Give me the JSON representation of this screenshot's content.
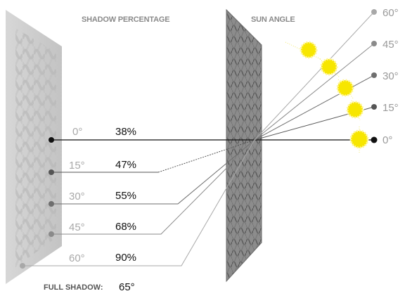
{
  "headers": {
    "shadow_percentage": "SHADOW PERCENTAGE",
    "sun_angle": "SUN ANGLE"
  },
  "shadow_rows": [
    {
      "angle": "0°",
      "percent": "38%",
      "color": "#111111"
    },
    {
      "angle": "15°",
      "percent": "47%",
      "color": "#555555"
    },
    {
      "angle": "30°",
      "percent": "55%",
      "color": "#6e6e6e"
    },
    {
      "angle": "45°",
      "percent": "68%",
      "color": "#8a8a8a"
    },
    {
      "angle": "60°",
      "percent": "90%",
      "color": "#a8a8a8"
    }
  ],
  "sun_angles": [
    {
      "label": "0°",
      "color": "#111111"
    },
    {
      "label": "15°",
      "color": "#555555"
    },
    {
      "label": "30°",
      "color": "#6e6e6e"
    },
    {
      "label": "45°",
      "color": "#8a8a8a"
    },
    {
      "label": "60°",
      "color": "#a8a8a8"
    }
  ],
  "full_shadow": {
    "label": "FULL SHADOW:",
    "value": "65°"
  },
  "colors": {
    "sun": "#f7e600",
    "sun_rays": "#f2ea70",
    "wall": "#cfcfcf",
    "mesh": "#6f6f6f"
  }
}
